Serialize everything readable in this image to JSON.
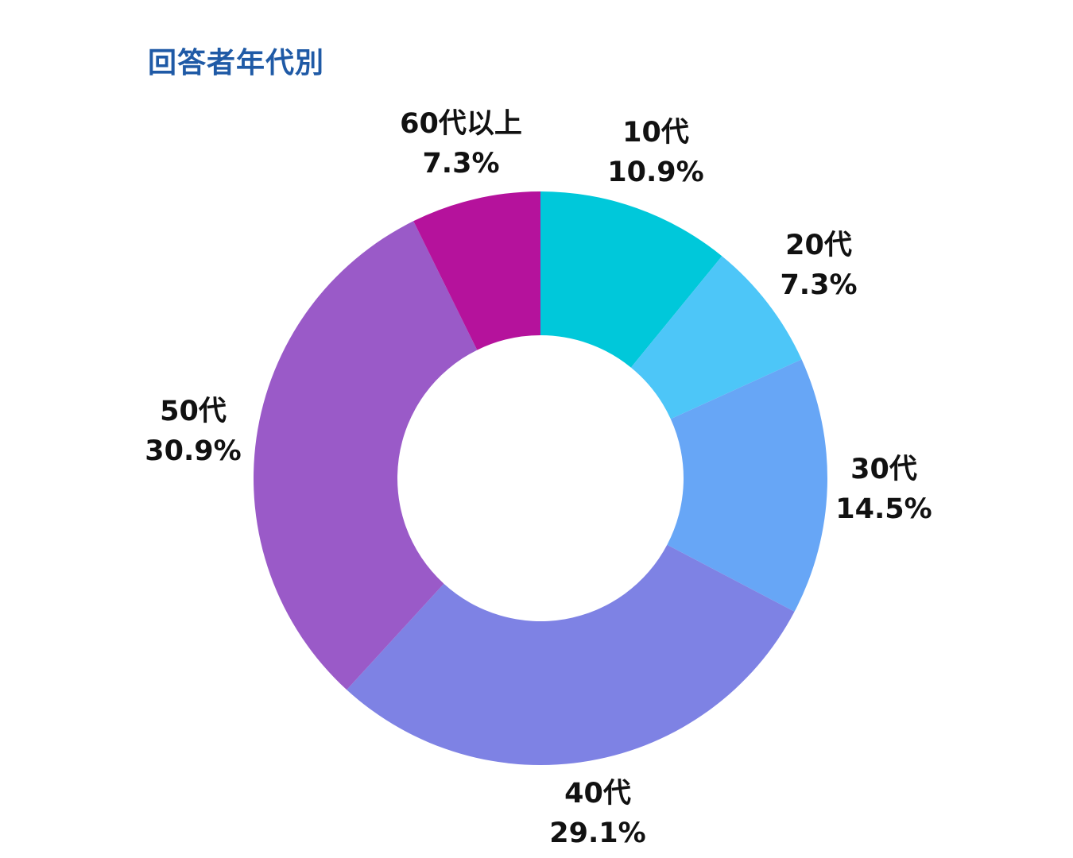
{
  "title": "回答者年代別",
  "chart_data": {
    "type": "pie",
    "title": "回答者年代別",
    "style": "donut",
    "categories": [
      "10代",
      "20代",
      "30代",
      "40代",
      "50代",
      "60代以上"
    ],
    "values": [
      10.9,
      7.3,
      14.5,
      29.1,
      30.9,
      7.3
    ],
    "value_labels": [
      "10.9%",
      "7.3%",
      "14.5%",
      "29.1%",
      "30.9%",
      "7.3%"
    ],
    "colors": [
      "#00c8da",
      "#4dc6f8",
      "#67a6f6",
      "#7e82e4",
      "#9a5ac8",
      "#b5129c"
    ],
    "start_angle": "top (12 o'clock)",
    "direction": "clockwise"
  }
}
